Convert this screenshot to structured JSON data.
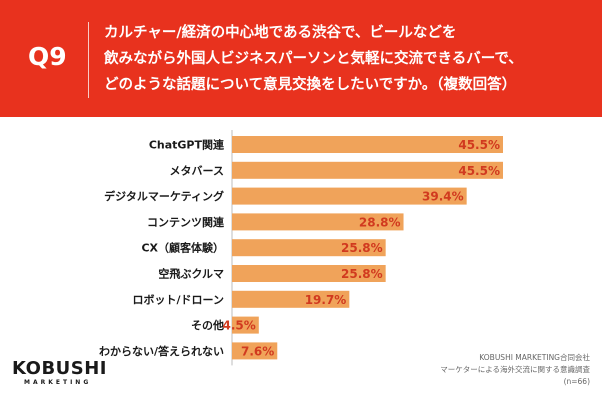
{
  "header": {
    "question_number": "Q9",
    "question_lines": [
      "カルチャー/経済の中心地である渋谷で、ビールなどを",
      "飲みながら外国人ビジネスパーソンと気軽に交流できるバーで、",
      "どのような話題について意見交換をしたいですか。（複数回答）"
    ]
  },
  "colors": {
    "header_bg": "#e8321e",
    "bar": "#f0a35a",
    "value_label": "#d13a1f",
    "category_label": "#1a1a1a"
  },
  "chart_data": {
    "type": "bar",
    "orientation": "horizontal",
    "categories": [
      "ChatGPT関連",
      "メタバース",
      "デジタルマーケティング",
      "コンテンツ関連",
      "CX（顧客体験）",
      "空飛ぶクルマ",
      "ロボット/ドローン",
      "その他",
      "わからない/答えられない"
    ],
    "values": [
      45.5,
      45.5,
      39.4,
      28.8,
      25.8,
      25.8,
      19.7,
      4.5,
      7.6
    ],
    "value_labels": [
      "45.5%",
      "45.5%",
      "39.4%",
      "28.8%",
      "25.8%",
      "25.8%",
      "19.7%",
      "4.5%",
      "7.6%"
    ],
    "xlim": [
      0,
      100
    ],
    "unit": "%",
    "grid": false,
    "legend": "none"
  },
  "logo": {
    "name": "KOBUSHI",
    "tagline": "MARKETING"
  },
  "source": {
    "lines": [
      "KOBUSHI MARKETING合同会社",
      "マーケターによる海外交流に関する意識調査",
      "(n=66)"
    ]
  }
}
